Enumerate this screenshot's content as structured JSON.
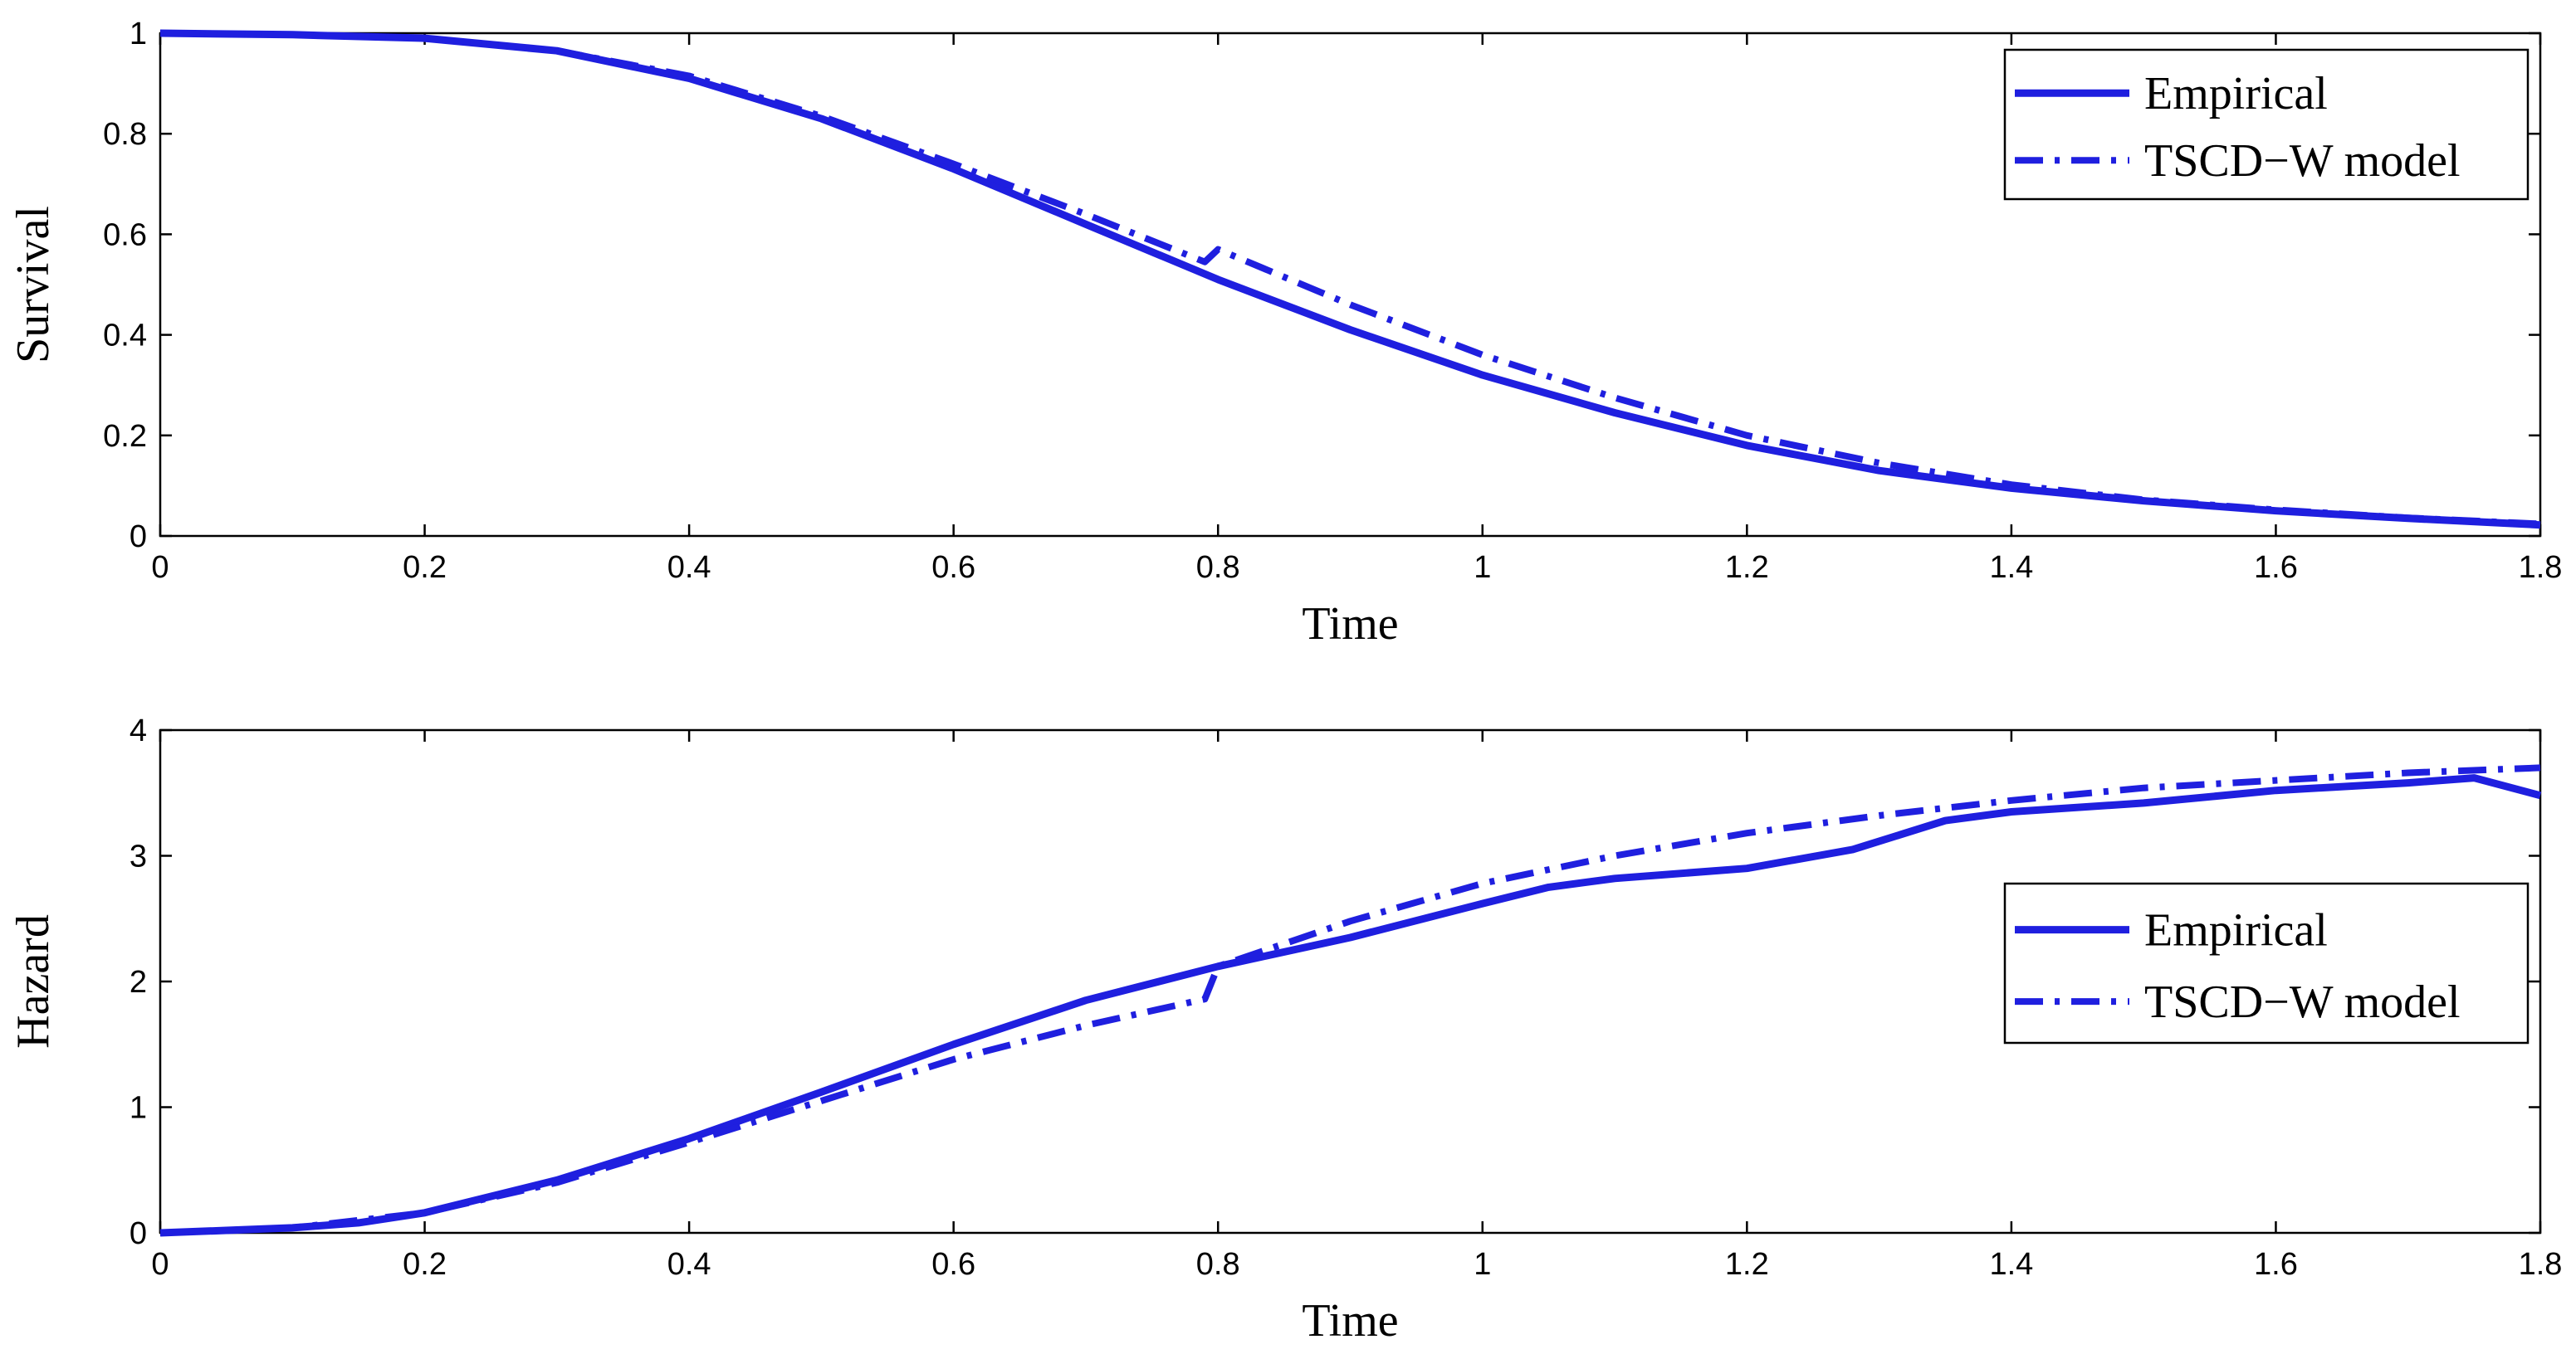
{
  "chart_data": [
    {
      "type": "line",
      "title": "",
      "xlabel": "Time",
      "ylabel": "Survival",
      "xlim": [
        0,
        1.8
      ],
      "ylim": [
        0,
        1
      ],
      "xticks": [
        "0",
        "0.2",
        "0.4",
        "0.6",
        "0.8",
        "1",
        "1.2",
        "1.4",
        "1.6",
        "1.8"
      ],
      "yticks": [
        "0",
        "0.2",
        "0.4",
        "0.6",
        "0.8",
        "1"
      ],
      "grid": false,
      "legend_position": "top-right",
      "series": [
        {
          "name": "Empirical",
          "style": "solid",
          "color": "#1f1fdf",
          "x": [
            0,
            0.1,
            0.2,
            0.3,
            0.4,
            0.5,
            0.6,
            0.7,
            0.8,
            0.9,
            1.0,
            1.1,
            1.2,
            1.3,
            1.4,
            1.5,
            1.6,
            1.7,
            1.8
          ],
          "y": [
            1.0,
            0.997,
            0.99,
            0.965,
            0.91,
            0.83,
            0.73,
            0.62,
            0.51,
            0.41,
            0.32,
            0.245,
            0.18,
            0.13,
            0.095,
            0.07,
            0.05,
            0.035,
            0.022
          ]
        },
        {
          "name": "TSCD−W model",
          "style": "dashdot",
          "color": "#1f1fdf",
          "x": [
            0,
            0.1,
            0.2,
            0.3,
            0.4,
            0.5,
            0.6,
            0.7,
            0.79,
            0.8,
            0.9,
            1.0,
            1.1,
            1.2,
            1.3,
            1.4,
            1.5,
            1.6,
            1.7,
            1.8
          ],
          "y": [
            1.0,
            0.997,
            0.99,
            0.965,
            0.915,
            0.835,
            0.74,
            0.64,
            0.545,
            0.57,
            0.46,
            0.36,
            0.275,
            0.2,
            0.145,
            0.102,
            0.072,
            0.052,
            0.036,
            0.024
          ]
        }
      ]
    },
    {
      "type": "line",
      "title": "",
      "xlabel": "Time",
      "ylabel": "Hazard",
      "xlim": [
        0,
        1.8
      ],
      "ylim": [
        0,
        4
      ],
      "xticks": [
        "0",
        "0.2",
        "0.4",
        "0.6",
        "0.8",
        "1",
        "1.2",
        "1.4",
        "1.6",
        "1.8"
      ],
      "yticks": [
        "0",
        "1",
        "2",
        "3",
        "4"
      ],
      "grid": false,
      "legend_position": "middle-right",
      "series": [
        {
          "name": "Empirical",
          "style": "solid",
          "color": "#1f1fdf",
          "x": [
            0,
            0.05,
            0.1,
            0.15,
            0.2,
            0.3,
            0.4,
            0.5,
            0.6,
            0.7,
            0.8,
            0.9,
            1.0,
            1.05,
            1.1,
            1.2,
            1.28,
            1.35,
            1.4,
            1.5,
            1.6,
            1.7,
            1.75,
            1.8
          ],
          "y": [
            0,
            0.02,
            0.04,
            0.08,
            0.16,
            0.42,
            0.75,
            1.12,
            1.5,
            1.85,
            2.12,
            2.35,
            2.62,
            2.75,
            2.82,
            2.9,
            3.05,
            3.28,
            3.35,
            3.42,
            3.52,
            3.58,
            3.62,
            3.48
          ]
        },
        {
          "name": "TSCD−W model",
          "style": "dashdot",
          "color": "#1f1fdf",
          "x": [
            0,
            0.1,
            0.2,
            0.3,
            0.4,
            0.5,
            0.6,
            0.7,
            0.79,
            0.8,
            0.9,
            1.0,
            1.1,
            1.2,
            1.3,
            1.4,
            1.5,
            1.6,
            1.7,
            1.8
          ],
          "y": [
            0,
            0.04,
            0.16,
            0.4,
            0.72,
            1.05,
            1.38,
            1.65,
            1.86,
            2.12,
            2.48,
            2.78,
            3.0,
            3.18,
            3.32,
            3.44,
            3.54,
            3.6,
            3.66,
            3.7
          ]
        }
      ]
    }
  ]
}
